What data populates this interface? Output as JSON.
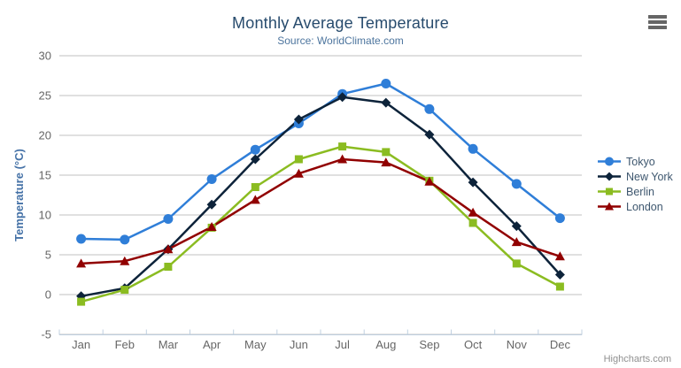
{
  "chart": {
    "title": "Monthly Average Temperature",
    "subtitle": "Source: WorldClimate.com",
    "credit": "Highcharts.com",
    "menu_icon": "hamburger-menu-icon"
  },
  "chart_data": {
    "type": "line",
    "title": "Monthly Average Temperature",
    "subtitle": "Source: WorldClimate.com",
    "xlabel": "",
    "ylabel": "Temperature (°C)",
    "ylim": [
      -5,
      30
    ],
    "ytick_step": 5,
    "grid": true,
    "legend_position": "right",
    "categories": [
      "Jan",
      "Feb",
      "Mar",
      "Apr",
      "May",
      "Jun",
      "Jul",
      "Aug",
      "Sep",
      "Oct",
      "Nov",
      "Dec"
    ],
    "series": [
      {
        "name": "Tokyo",
        "color": "#2f7ed8",
        "marker": "circle",
        "values": [
          7.0,
          6.9,
          9.5,
          14.5,
          18.2,
          21.5,
          25.2,
          26.5,
          23.3,
          18.3,
          13.9,
          9.6
        ]
      },
      {
        "name": "New York",
        "color": "#0d233a",
        "marker": "diamond",
        "values": [
          -0.2,
          0.8,
          5.7,
          11.3,
          17.0,
          22.0,
          24.8,
          24.1,
          20.1,
          14.1,
          8.6,
          2.5
        ]
      },
      {
        "name": "Berlin",
        "color": "#8bbc21",
        "marker": "square",
        "values": [
          -0.9,
          0.6,
          3.5,
          8.4,
          13.5,
          17.0,
          18.6,
          17.9,
          14.3,
          9.0,
          3.9,
          1.0
        ]
      },
      {
        "name": "London",
        "color": "#910000",
        "marker": "triangle",
        "values": [
          3.9,
          4.2,
          5.7,
          8.5,
          11.9,
          15.2,
          17.0,
          16.6,
          14.2,
          10.3,
          6.6,
          4.8
        ]
      }
    ],
    "style_colors": {
      "gridline": "#C0C0C0",
      "axis_line": "#C0D0E0",
      "axis_label": "#666666",
      "y_axis_title": "#4572A7",
      "legend_text": "#3E576F",
      "title": "#274b6d",
      "subtitle": "#4d759e",
      "credit": "#909090"
    }
  }
}
